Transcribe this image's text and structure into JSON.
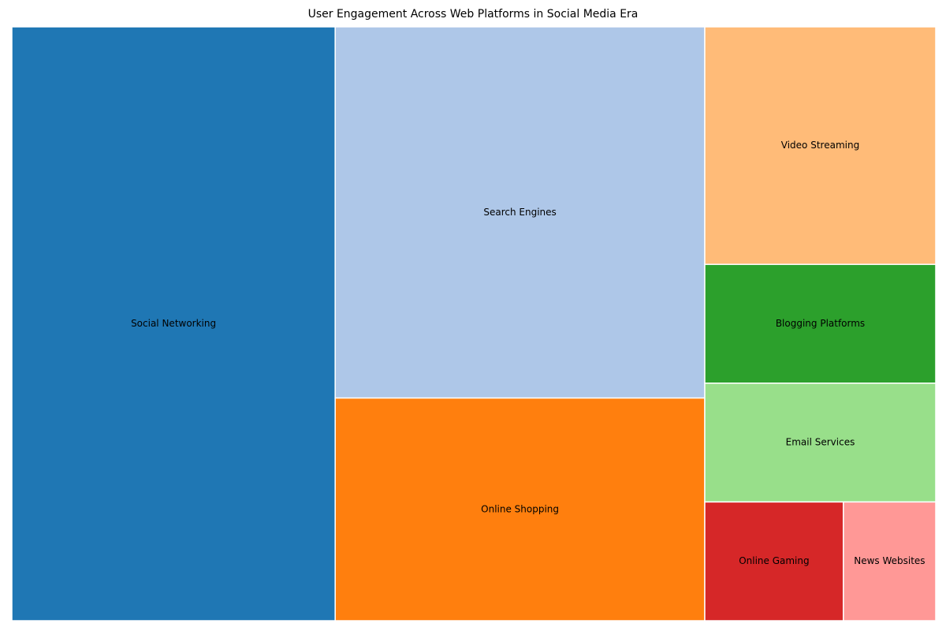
{
  "chart_data": {
    "type": "treemap",
    "title": "User Engagement Across Web Platforms in Social Media Era",
    "items": [
      {
        "label": "Social Networking",
        "value": 35,
        "color": "#1f77b4"
      },
      {
        "label": "Search Engines",
        "value": 25,
        "color": "#aec7e8"
      },
      {
        "label": "Online Shopping",
        "value": 15,
        "color": "#ff7f0e"
      },
      {
        "label": "Video Streaming",
        "value": 10,
        "color": "#ffbb78"
      },
      {
        "label": "Blogging Platforms",
        "value": 5,
        "color": "#2ca02c"
      },
      {
        "label": "Email Services",
        "value": 5,
        "color": "#98df8a"
      },
      {
        "label": "Online Gaming",
        "value": 3,
        "color": "#d62728"
      },
      {
        "label": "News Websites",
        "value": 2,
        "color": "#ff9896"
      }
    ]
  }
}
